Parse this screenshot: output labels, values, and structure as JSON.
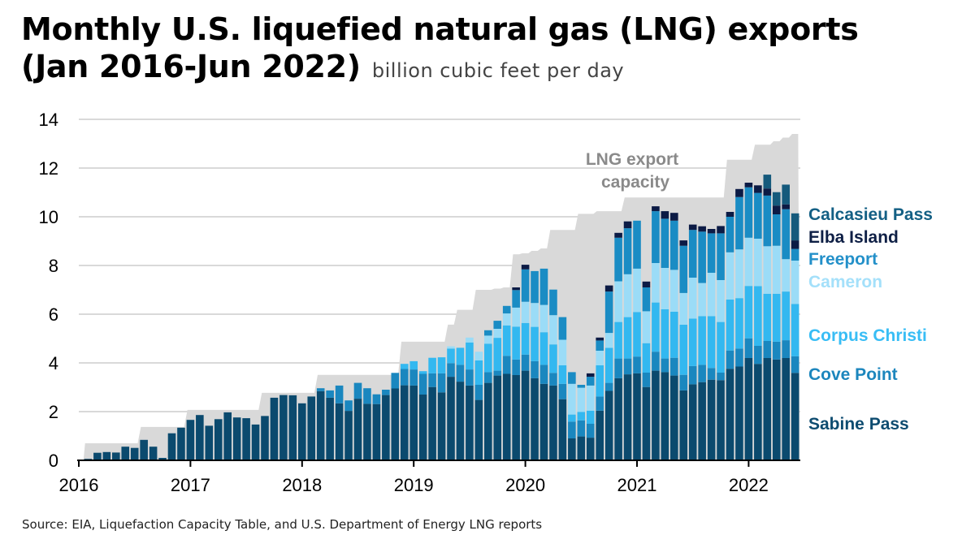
{
  "title_line1": "Monthly U.S. liquefied natural gas (LNG) exports",
  "title_line2": "(Jan 2016-Jun 2022)",
  "subtitle": "billion cubic feet per day",
  "source": "Source: EIA, Liquefaction Capacity Table, and U.S. Department of Energy LNG reports",
  "chart_data": {
    "type": "bar",
    "stacked": true,
    "ylim": [
      0,
      14
    ],
    "yticks": [
      "0",
      "2",
      "4",
      "6",
      "8",
      "10",
      "12",
      "14"
    ],
    "xticks": [
      "2016",
      "2017",
      "2018",
      "2019",
      "2020",
      "2021",
      "2022"
    ],
    "grid": "horizontal",
    "legend_placement": "right, inline labels",
    "x_range": [
      "Jan 2016",
      "Jun 2022"
    ],
    "capacity_annotation": [
      "LNG export",
      "capacity"
    ],
    "capacity_color": "#d9d9d9",
    "capacity": [
      0.7,
      0.7,
      0.7,
      0.7,
      0.7,
      0.7,
      0.7,
      1.37,
      1.37,
      1.37,
      1.37,
      1.37,
      2.07,
      2.07,
      2.07,
      2.07,
      2.07,
      2.07,
      2.07,
      2.07,
      2.77,
      2.77,
      2.77,
      2.77,
      2.77,
      2.77,
      3.51,
      3.51,
      3.51,
      3.51,
      3.51,
      3.51,
      3.51,
      3.51,
      3.51,
      4.87,
      4.87,
      4.87,
      4.87,
      4.87,
      5.57,
      6.18,
      6.18,
      7.0,
      7.0,
      7.05,
      7.1,
      8.46,
      8.5,
      8.6,
      8.7,
      9.46,
      9.46,
      9.46,
      10.12,
      10.12,
      10.23,
      10.23,
      10.23,
      10.79,
      10.79,
      10.79,
      10.79,
      10.79,
      10.79,
      10.79,
      10.79,
      10.79,
      10.79,
      10.79,
      12.34,
      12.34,
      12.34,
      12.96,
      12.96,
      13.1,
      13.25,
      13.4
    ],
    "series": [
      {
        "name": "Sabine Pass",
        "color": "#0b4a6e",
        "label_color": "#0e4c70",
        "values": [
          0,
          0.06,
          0.31,
          0.34,
          0.32,
          0.56,
          0.51,
          0.84,
          0.56,
          0.1,
          1.11,
          1.34,
          1.66,
          1.86,
          1.42,
          1.69,
          1.97,
          1.76,
          1.73,
          1.47,
          1.82,
          2.57,
          2.68,
          2.67,
          2.34,
          2.62,
          2.84,
          2.57,
          2.34,
          2.03,
          2.53,
          2.32,
          2.31,
          2.68,
          2.95,
          3.08,
          3.07,
          2.7,
          3.01,
          2.79,
          3.43,
          3.23,
          3.07,
          2.48,
          3.18,
          3.48,
          3.55,
          3.5,
          3.68,
          3.37,
          3.14,
          3.07,
          2.51,
          0.9,
          0.98,
          0.93,
          2.04,
          2.85,
          3.37,
          3.53,
          3.57,
          3.01,
          3.68,
          3.62,
          3.48,
          2.87,
          3.12,
          3.21,
          3.31,
          3.29,
          3.76,
          3.85,
          4.2,
          3.96,
          4.2,
          4.14,
          4.2,
          3.59
        ]
      },
      {
        "name": "Cove Point",
        "color": "#1a87bf",
        "label_color": "#1c86bd",
        "values": [
          0,
          0,
          0,
          0,
          0,
          0,
          0,
          0,
          0,
          0,
          0,
          0,
          0,
          0,
          0,
          0,
          0,
          0,
          0,
          0,
          0,
          0,
          0,
          0,
          0,
          0,
          0.12,
          0.3,
          0.73,
          0.43,
          0.65,
          0.64,
          0.4,
          0.22,
          0.64,
          0.67,
          0.66,
          0.85,
          0.56,
          0.78,
          0.56,
          0.69,
          0.66,
          0.62,
          0.44,
          0.2,
          0.74,
          0.64,
          0.66,
          0.7,
          0.78,
          0.52,
          0.63,
          0.69,
          0.66,
          0.57,
          0.58,
          0.33,
          0.81,
          0.65,
          0.69,
          0.59,
          0.78,
          0.56,
          0.73,
          0.64,
          0.75,
          0.71,
          0.48,
          0.31,
          0.75,
          0.74,
          0.81,
          0.74,
          0.7,
          0.73,
          0.73,
          0.68
        ]
      },
      {
        "name": "Corpus Christi",
        "color": "#33b8f0",
        "label_color": "#38bdf5",
        "values": [
          0,
          0,
          0,
          0,
          0,
          0,
          0,
          0,
          0,
          0,
          0,
          0,
          0,
          0,
          0,
          0,
          0,
          0,
          0,
          0,
          0,
          0,
          0,
          0,
          0,
          0,
          0,
          0,
          0,
          0,
          0,
          0,
          0,
          0,
          0,
          0.21,
          0.34,
          0.11,
          0.64,
          0.66,
          0.6,
          0.7,
          1.11,
          1.0,
          1.17,
          1.35,
          1.25,
          1.35,
          1.3,
          1.41,
          1.34,
          1.17,
          0.76,
          0.29,
          0.35,
          0.54,
          1.28,
          1.44,
          1.5,
          1.7,
          1.83,
          1.21,
          2.02,
          2.02,
          1.89,
          2.06,
          1.95,
          2.0,
          2.13,
          2.08,
          2.09,
          2.07,
          2.15,
          2.45,
          1.94,
          1.97,
          2.0,
          2.15
        ]
      },
      {
        "name": "Cameron",
        "color": "#9bdcf7",
        "label_color": "#a4e0fa",
        "values": [
          0,
          0,
          0,
          0,
          0,
          0,
          0,
          0,
          0,
          0,
          0,
          0,
          0,
          0,
          0,
          0,
          0,
          0,
          0,
          0,
          0,
          0,
          0,
          0,
          0,
          0,
          0,
          0,
          0,
          0,
          0,
          0,
          0,
          0,
          0,
          0,
          0,
          0,
          0,
          0,
          0.09,
          0,
          0.2,
          0.36,
          0.33,
          0.37,
          0.49,
          0.78,
          0.87,
          0.98,
          1.12,
          1.2,
          1.05,
          1.26,
          0.99,
          1.03,
          0.6,
          0.61,
          1.67,
          1.76,
          1.78,
          1.31,
          1.62,
          1.7,
          1.72,
          1.3,
          1.68,
          1.36,
          1.78,
          1.72,
          1.94,
          2.0,
          1.98,
          1.95,
          1.95,
          1.97,
          1.33,
          1.78
        ]
      },
      {
        "name": "Freeport",
        "color": "#1a8cc4",
        "label_color": "#2390c9",
        "values": [
          0,
          0,
          0,
          0,
          0,
          0,
          0,
          0,
          0,
          0,
          0,
          0,
          0,
          0,
          0,
          0,
          0,
          0,
          0,
          0,
          0,
          0,
          0,
          0,
          0,
          0,
          0,
          0,
          0,
          0,
          0,
          0,
          0,
          0,
          0,
          0,
          0,
          0,
          0,
          0,
          0,
          0,
          0,
          0,
          0.22,
          0.33,
          0.31,
          0.72,
          1.33,
          1.31,
          1.49,
          1.05,
          0.93,
          0.48,
          0.12,
          0.36,
          0.42,
          1.7,
          1.79,
          1.89,
          1.97,
          0.98,
          2.13,
          2.02,
          2.02,
          1.94,
          1.96,
          2.11,
          1.62,
          1.92,
          1.46,
          2.15,
          2.07,
          1.88,
          2.08,
          1.29,
          2.05,
          0.48
        ]
      },
      {
        "name": "Elba Island",
        "color": "#0c1b45",
        "label_color": "#0e1f45",
        "values": [
          0,
          0,
          0,
          0,
          0,
          0,
          0,
          0,
          0,
          0,
          0,
          0,
          0,
          0,
          0,
          0,
          0,
          0,
          0,
          0,
          0,
          0,
          0,
          0,
          0,
          0,
          0,
          0,
          0,
          0,
          0,
          0,
          0,
          0,
          0,
          0,
          0,
          0,
          0,
          0,
          0,
          0,
          0,
          0,
          0,
          0,
          0,
          0.11,
          0.19,
          0,
          0,
          0,
          0,
          0,
          0,
          0.14,
          0.12,
          0.25,
          0.2,
          0.28,
          0,
          0.24,
          0.2,
          0.31,
          0.32,
          0.22,
          0.22,
          0.22,
          0.18,
          0.3,
          0.2,
          0.33,
          0.19,
          0.31,
          0.29,
          0.36,
          0.2,
          0.35
        ]
      },
      {
        "name": "Calcasieu Pass",
        "color": "#155a7c",
        "label_color": "#135f84",
        "values": [
          0,
          0,
          0,
          0,
          0,
          0,
          0,
          0,
          0,
          0,
          0,
          0,
          0,
          0,
          0,
          0,
          0,
          0,
          0,
          0,
          0,
          0,
          0,
          0,
          0,
          0,
          0,
          0,
          0,
          0,
          0,
          0,
          0,
          0,
          0,
          0,
          0,
          0,
          0,
          0,
          0,
          0,
          0,
          0,
          0,
          0,
          0,
          0,
          0,
          0,
          0,
          0,
          0,
          0,
          0,
          0,
          0,
          0,
          0,
          0,
          0,
          0,
          0,
          0,
          0,
          0,
          0,
          0,
          0,
          0,
          0,
          0,
          0,
          0,
          0.57,
          0.55,
          0.81,
          1.11
        ]
      }
    ]
  }
}
